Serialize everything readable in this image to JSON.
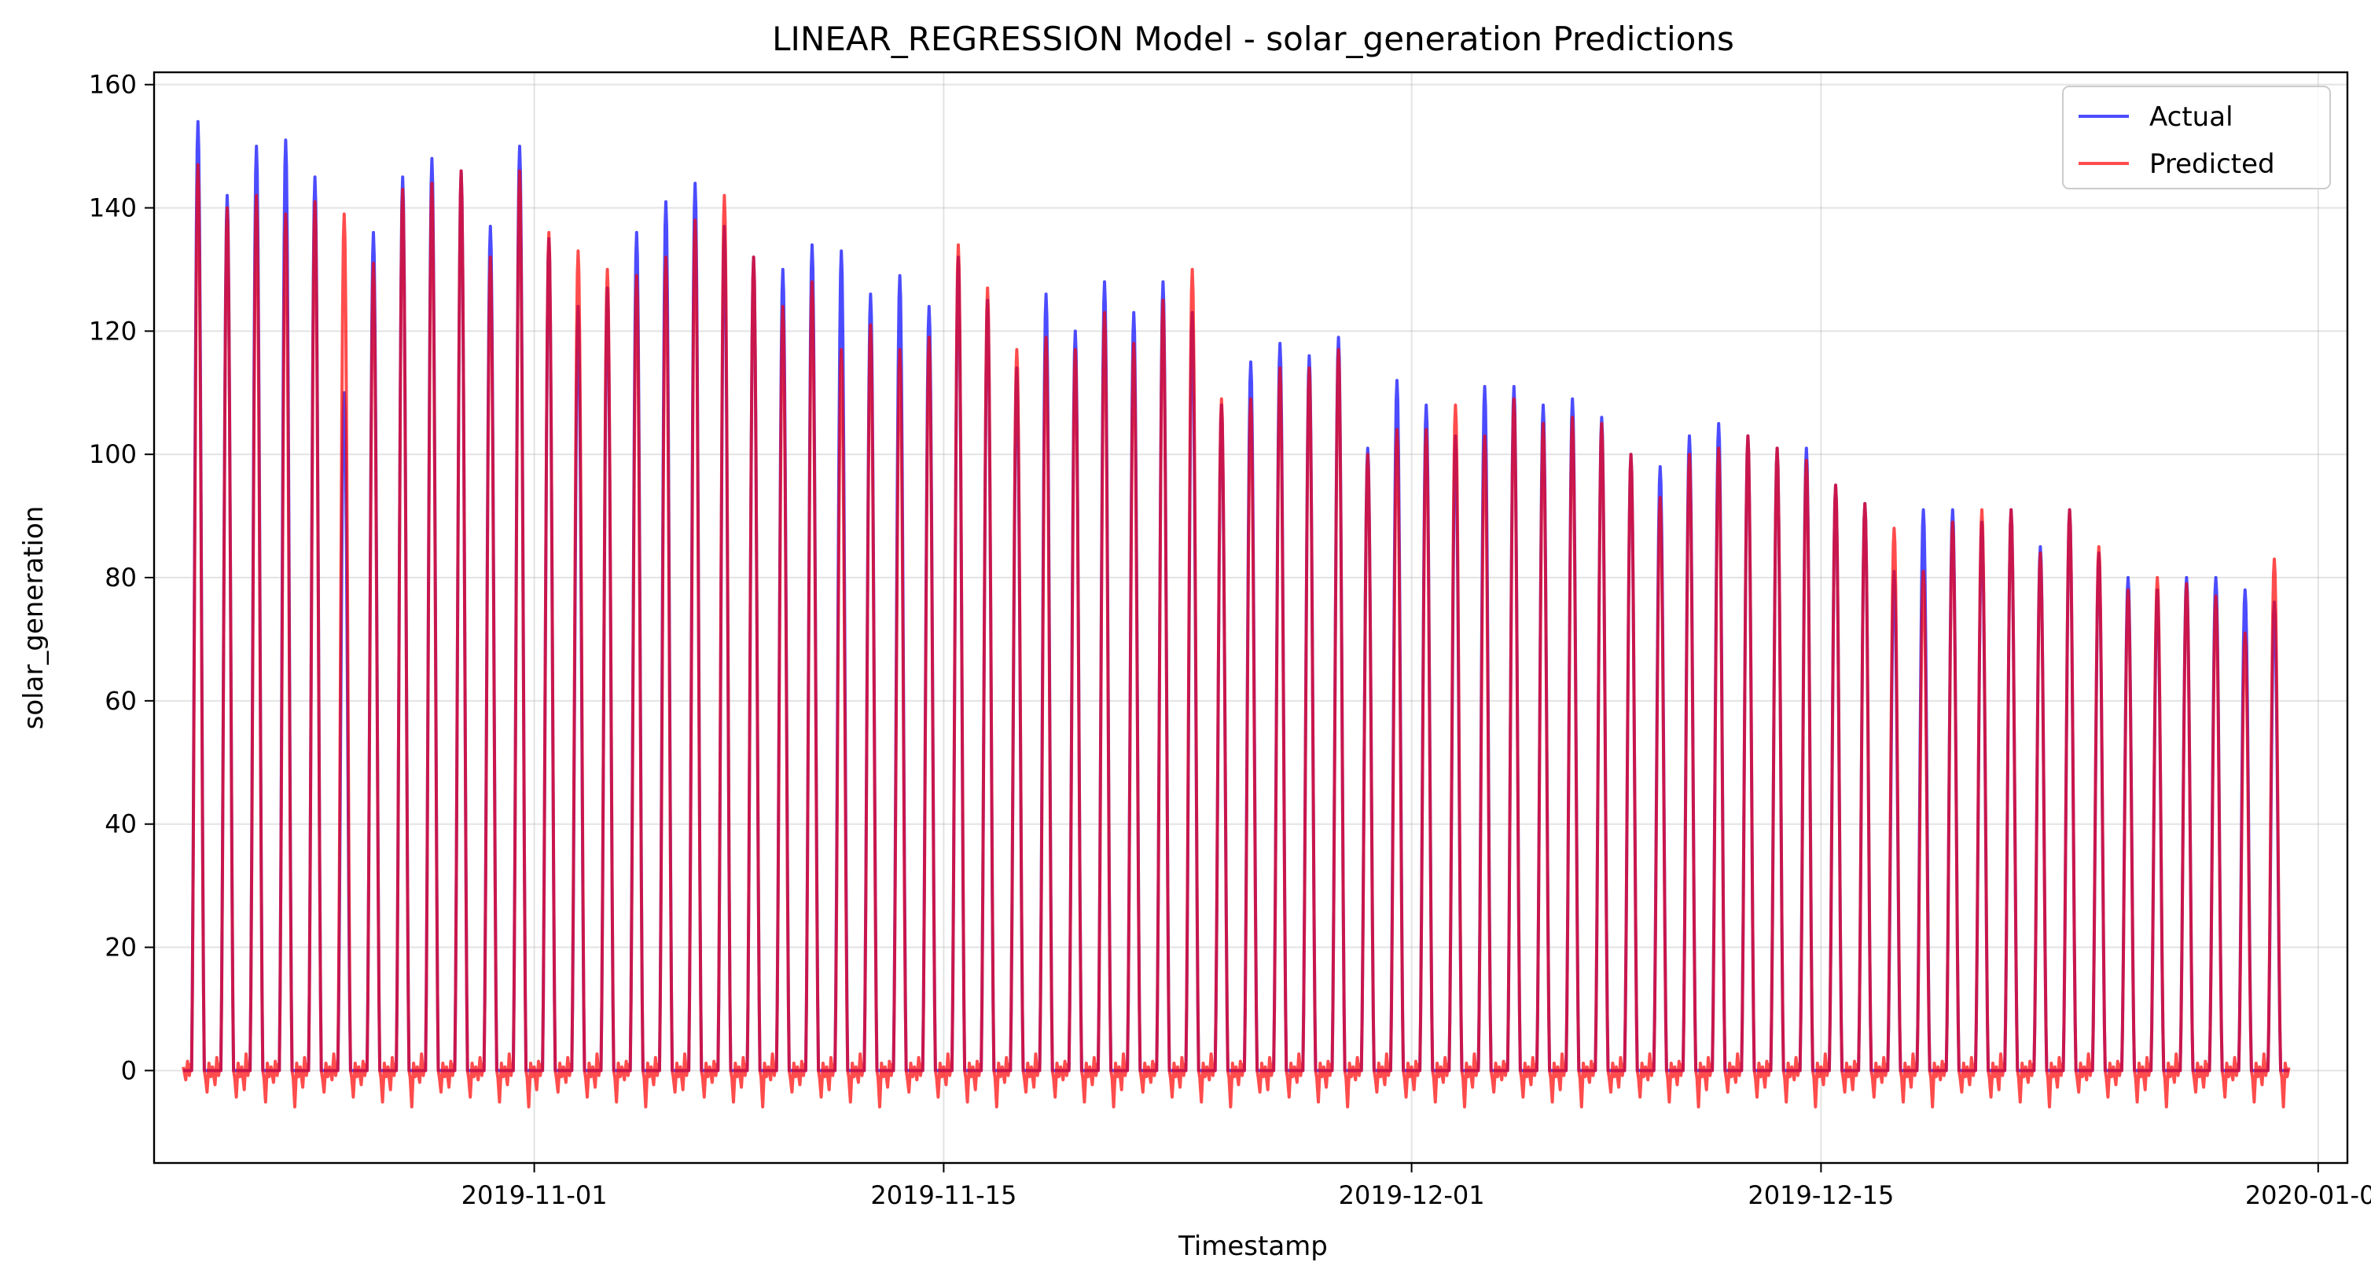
{
  "chart_data": {
    "type": "line",
    "title": "LINEAR_REGRESSION Model - solar_generation Predictions",
    "xlabel": "Timestamp",
    "ylabel": "solar_generation",
    "x_start": "2019-10-20",
    "x_end": "2019-12-31",
    "xlim": [
      "2019-10-19",
      "2020-01-02"
    ],
    "ylim": [
      -15,
      162
    ],
    "yticks": [
      0,
      20,
      40,
      60,
      80,
      100,
      120,
      140,
      160
    ],
    "xticks": [
      "2019-11-01",
      "2019-11-15",
      "2019-12-01",
      "2019-12-15",
      "2020-01-01"
    ],
    "grid": true,
    "legend_position": "top-right",
    "series": [
      {
        "name": "Actual",
        "color": "#0000ff",
        "daily_peaks": [
          154,
          142,
          150,
          151,
          145,
          110,
          136,
          145,
          148,
          146,
          137,
          150,
          135,
          124,
          127,
          136,
          141,
          144,
          137,
          132,
          130,
          134,
          133,
          126,
          129,
          124,
          132,
          125,
          114,
          126,
          120,
          128,
          123,
          128,
          123,
          108,
          115,
          118,
          116,
          119,
          101,
          112,
          108,
          103,
          111,
          111,
          108,
          109,
          106,
          100,
          98,
          103,
          105,
          103,
          101,
          101,
          95,
          92,
          81,
          91,
          91,
          89,
          91,
          85,
          91,
          84,
          80,
          78,
          80,
          80,
          78,
          76
        ]
      },
      {
        "name": "Predicted",
        "color": "#ff0000",
        "daily_peaks": [
          147,
          140,
          142,
          139,
          141,
          139,
          131,
          143,
          144,
          146,
          132,
          146,
          136,
          133,
          130,
          129,
          132,
          138,
          142,
          132,
          124,
          128,
          117,
          121,
          117,
          119,
          134,
          127,
          117,
          119,
          117,
          123,
          118,
          125,
          130,
          109,
          109,
          114,
          114,
          117,
          100,
          104,
          104,
          108,
          103,
          109,
          105,
          106,
          105,
          100,
          93,
          100,
          101,
          103,
          101,
          99,
          95,
          92,
          88,
          81,
          89,
          91,
          91,
          84,
          91,
          85,
          78,
          80,
          79,
          77,
          71,
          83
        ]
      }
    ]
  }
}
